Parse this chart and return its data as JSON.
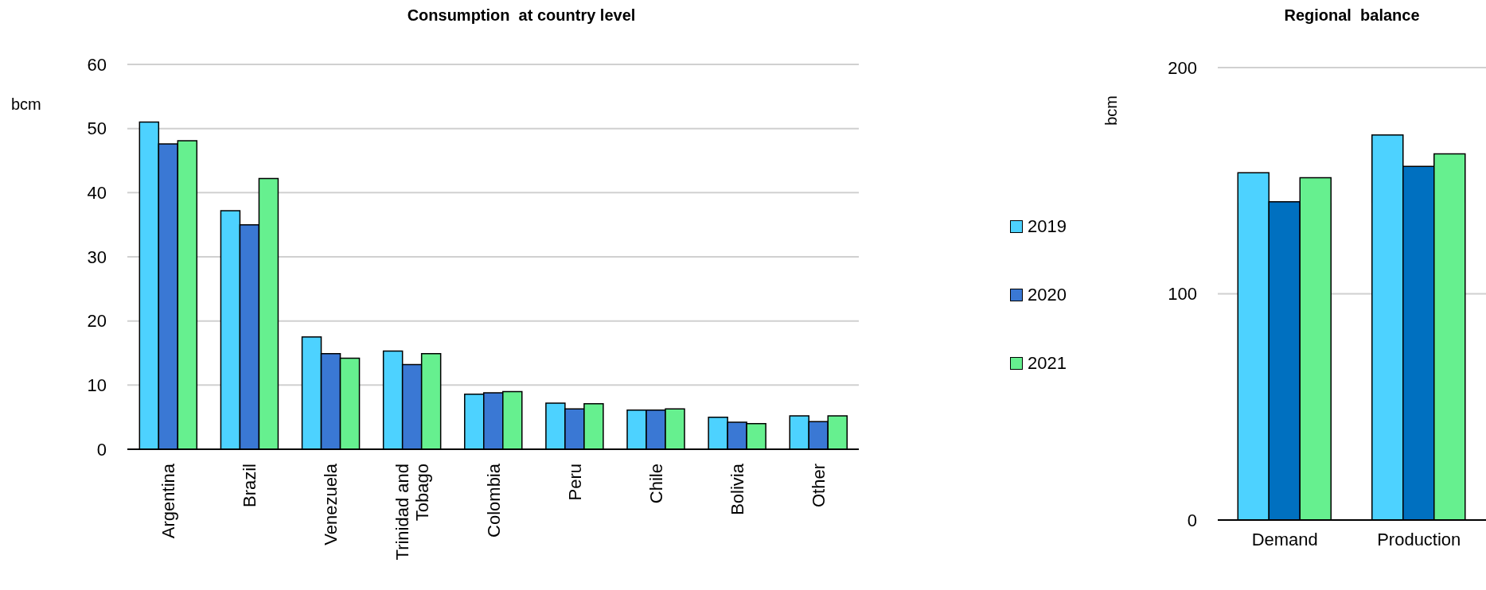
{
  "chart_data": [
    {
      "type": "bar",
      "title": "Consumption  at country level",
      "ylabel": "bcm",
      "categories": [
        "Argentina",
        "Brazil",
        "Venezuela",
        "Trinidad and Tobago",
        "Colombia",
        "Peru",
        "Chile",
        "Bolivia",
        "Other"
      ],
      "series": [
        {
          "name": "2019",
          "color": "#4dd2ff",
          "values": [
            51,
            37.2,
            17.5,
            15.3,
            8.6,
            7.2,
            6.1,
            5.0,
            5.2
          ]
        },
        {
          "name": "2020",
          "color": "#3a78d4",
          "values": [
            47.6,
            35,
            14.9,
            13.2,
            8.8,
            6.3,
            6.1,
            4.2,
            4.3
          ]
        },
        {
          "name": "2021",
          "color": "#66f08f",
          "values": [
            48.1,
            42.2,
            14.2,
            14.9,
            9.0,
            7.1,
            6.3,
            4.0,
            5.2
          ]
        }
      ],
      "ylim": [
        0,
        60
      ],
      "yticks": [
        0,
        10,
        20,
        30,
        40,
        50,
        60
      ],
      "grid": "y",
      "legend": "right"
    },
    {
      "type": "bar",
      "title": "Regional  balance",
      "ylabel": "bcm",
      "categories": [
        "Demand",
        "Production"
      ],
      "series": [
        {
          "color": "#4dd2ff",
          "values": [
            153.5,
            170.2
          ]
        },
        {
          "color": "#0070c0",
          "values": [
            140.7,
            156.3
          ]
        },
        {
          "color": "#66f08f",
          "values": [
            151.3,
            161.9
          ]
        }
      ],
      "ylim": [
        0,
        200
      ],
      "yticks": [
        0,
        100,
        200
      ],
      "grid": "y"
    }
  ]
}
